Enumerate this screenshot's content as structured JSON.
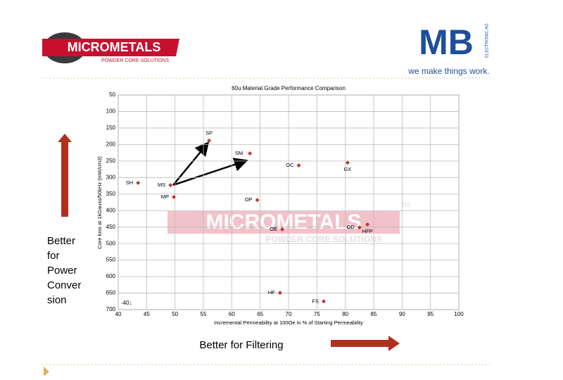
{
  "header": {
    "logo_left": "MICROMETALS",
    "logo_left_sub": "POWDER CORE SOLUTIONS",
    "logo_right": "MB",
    "logo_right_side": "ELECTRONIC AG",
    "tagline": "we make things work."
  },
  "side_note": [
    "Better",
    "for",
    "Power",
    "Conver",
    "sion"
  ],
  "bottom_note": "Better for Filtering",
  "watermark": {
    "title": "MICROMETALS",
    "subtitle": "POWDER CORE SOLUTIONS",
    "tm": "TM"
  },
  "chart_data": {
    "type": "scatter",
    "title": "60u Material Grade Performance Comparison",
    "x_label": "Incremental Permeability at 100Oe in % of Starting Permeability",
    "y_label": "Core loss at 1kGauss/50kHz (mW/cm3)",
    "annotation": "-40↓",
    "labels": [
      "SP",
      "SM",
      "OC",
      "GX",
      "SH",
      "MS",
      "MP",
      "OP",
      "OE",
      "OD",
      "HFP",
      "HF",
      "FS"
    ],
    "x": [
      56.0,
      63.2,
      71.8,
      80.4,
      43.5,
      49.2,
      49.8,
      64.5,
      68.9,
      82.5,
      83.9,
      68.5,
      76.2
    ],
    "values": [
      188,
      227,
      263,
      255,
      316,
      323,
      359,
      368,
      457,
      451,
      442,
      649,
      675
    ],
    "color": "#c0392b",
    "xlim": [
      40,
      100
    ],
    "xticks": [
      40,
      45,
      50,
      55,
      60,
      65,
      70,
      75,
      80,
      85,
      90,
      95,
      100
    ],
    "ylim": [
      50,
      700
    ],
    "yticks": [
      50,
      100,
      150,
      200,
      250,
      300,
      350,
      400,
      450,
      500,
      550,
      600,
      650,
      700
    ],
    "y_inverted": true,
    "grid": true
  }
}
